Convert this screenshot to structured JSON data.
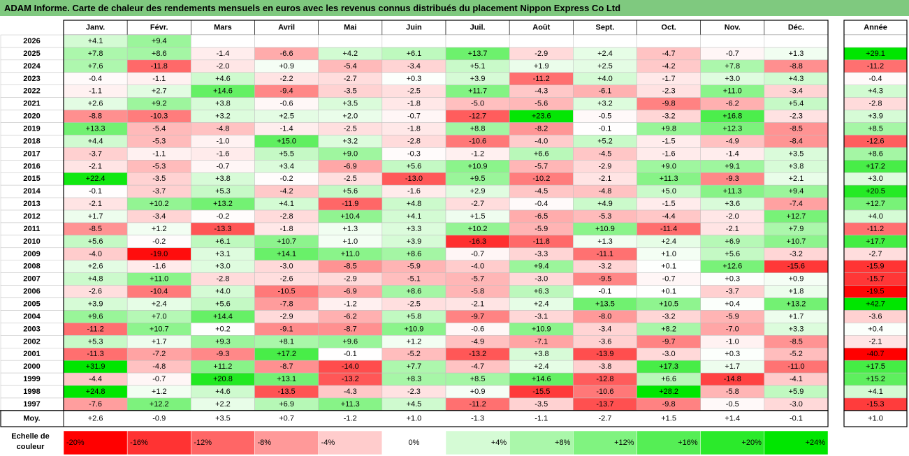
{
  "title": "ADAM Informe. Carte de chaleur des rendements mensuels en euros avec les revenus connus distribués du placement Nippon Express Co Ltd",
  "chart_data": {
    "type": "heatmap",
    "months": [
      "Janv.",
      "Févr.",
      "Mars",
      "Avril",
      "Mai",
      "Juin",
      "Juil.",
      "Août",
      "Sept.",
      "Oct.",
      "Nov.",
      "Déc."
    ],
    "year_label": "Année",
    "avg_label": "Moy.",
    "scale_label": "Echelle de couleur",
    "rows": [
      {
        "year": "2026",
        "values": [
          4.1,
          9.4,
          null,
          null,
          null,
          null,
          null,
          null,
          null,
          null,
          null,
          null
        ],
        "annual": null
      },
      {
        "year": "2025",
        "values": [
          7.8,
          8.6,
          -1.4,
          -6.6,
          4.2,
          6.1,
          13.7,
          -2.9,
          2.4,
          -4.7,
          -0.7,
          1.3
        ],
        "annual": 29.1
      },
      {
        "year": "2024",
        "values": [
          7.6,
          -11.8,
          -2.0,
          0.9,
          -5.4,
          -3.4,
          5.1,
          1.9,
          2.5,
          -4.2,
          7.8,
          -8.8
        ],
        "annual": -11.2
      },
      {
        "year": "2023",
        "values": [
          -0.4,
          -1.1,
          4.6,
          -2.2,
          -2.7,
          0.3,
          3.9,
          -11.2,
          4.0,
          -1.7,
          3.0,
          4.3
        ],
        "annual": -0.4
      },
      {
        "year": "2022",
        "values": [
          -1.1,
          2.7,
          14.6,
          -9.4,
          -3.5,
          -2.5,
          11.7,
          -4.3,
          -6.1,
          -2.3,
          11.0,
          -3.4
        ],
        "annual": 4.3
      },
      {
        "year": "2021",
        "values": [
          2.6,
          9.2,
          3.8,
          -0.6,
          3.5,
          -1.8,
          -5.0,
          -5.6,
          3.2,
          -9.8,
          -6.2,
          5.4
        ],
        "annual": -2.8
      },
      {
        "year": "2020",
        "values": [
          -8.8,
          -10.3,
          3.2,
          2.5,
          2.0,
          -0.7,
          -12.7,
          23.6,
          -0.5,
          -3.2,
          16.8,
          -2.3
        ],
        "annual": 3.9
      },
      {
        "year": "2019",
        "values": [
          13.3,
          -5.4,
          -4.8,
          -1.4,
          -2.5,
          -1.8,
          8.8,
          -8.2,
          -0.1,
          9.8,
          12.3,
          -8.5
        ],
        "annual": 8.5
      },
      {
        "year": "2018",
        "values": [
          4.4,
          -5.3,
          -1.0,
          15.0,
          3.2,
          -2.8,
          -10.6,
          -4.0,
          5.2,
          -1.5,
          -4.9,
          -8.4
        ],
        "annual": -12.6
      },
      {
        "year": "2017",
        "values": [
          -3.7,
          -1.1,
          -1.6,
          5.5,
          9.0,
          -0.3,
          -1.2,
          6.6,
          -4.5,
          -1.6,
          -1.4,
          3.5
        ],
        "annual": 8.6
      },
      {
        "year": "2016",
        "values": [
          -2.1,
          -5.3,
          -0.7,
          3.4,
          -6.9,
          5.6,
          10.9,
          -5.7,
          -2.9,
          9.0,
          9.1,
          3.8
        ],
        "annual": 17.2
      },
      {
        "year": "2015",
        "values": [
          22.4,
          -3.5,
          3.8,
          -0.2,
          -2.5,
          -13.0,
          9.5,
          -10.2,
          -2.1,
          11.3,
          -9.3,
          2.1
        ],
        "annual": 3.0
      },
      {
        "year": "2014",
        "values": [
          -0.1,
          -3.7,
          5.3,
          -4.2,
          5.6,
          -1.6,
          2.9,
          -4.5,
          -4.8,
          5.0,
          11.3,
          9.4
        ],
        "annual": 20.5
      },
      {
        "year": "2013",
        "values": [
          -2.1,
          10.2,
          13.2,
          4.1,
          -11.9,
          4.8,
          -2.7,
          -0.4,
          4.9,
          -1.5,
          3.6,
          -7.4
        ],
        "annual": 12.7
      },
      {
        "year": "2012",
        "values": [
          1.7,
          -3.4,
          -0.2,
          -2.8,
          10.4,
          4.1,
          1.5,
          -6.5,
          -5.3,
          -4.4,
          -2.0,
          12.7
        ],
        "annual": 4.0
      },
      {
        "year": "2011",
        "values": [
          -8.5,
          1.2,
          -13.3,
          -1.8,
          1.3,
          3.3,
          10.2,
          -5.9,
          10.9,
          -11.4,
          -2.1,
          7.9
        ],
        "annual": -11.2
      },
      {
        "year": "2010",
        "values": [
          5.6,
          -0.2,
          6.1,
          10.7,
          1.0,
          3.9,
          -16.3,
          -11.8,
          1.3,
          2.4,
          6.9,
          10.7
        ],
        "annual": 17.7
      },
      {
        "year": "2009",
        "values": [
          -4.0,
          -19.0,
          3.1,
          14.1,
          11.0,
          8.6,
          -0.7,
          -3.3,
          -11.1,
          1.0,
          5.6,
          -3.2
        ],
        "annual": -2.7
      },
      {
        "year": "2008",
        "values": [
          2.6,
          -1.6,
          3.0,
          -3.0,
          -8.5,
          -5.9,
          -4.0,
          9.4,
          -3.2,
          0.1,
          12.6,
          -15.6
        ],
        "annual": -15.9
      },
      {
        "year": "2007",
        "values": [
          4.8,
          11.0,
          -2.8,
          -2.6,
          -2.9,
          -5.1,
          -5.7,
          -3.0,
          -9.5,
          -0.7,
          0.3,
          0.9
        ],
        "annual": -15.7
      },
      {
        "year": "2006",
        "values": [
          -2.6,
          -10.4,
          4.0,
          -10.5,
          -6.9,
          8.6,
          -5.8,
          6.3,
          -0.1,
          0.1,
          -3.7,
          1.8
        ],
        "annual": -19.5
      },
      {
        "year": "2005",
        "values": [
          3.9,
          2.4,
          5.6,
          -7.8,
          -1.2,
          -2.5,
          -2.1,
          2.4,
          13.5,
          10.5,
          0.4,
          13.2
        ],
        "annual": 42.7
      },
      {
        "year": "2004",
        "values": [
          9.6,
          7.0,
          14.4,
          -2.9,
          -6.2,
          5.8,
          -9.7,
          -3.1,
          -8.0,
          -3.2,
          -5.9,
          1.7
        ],
        "annual": -3.6
      },
      {
        "year": "2003",
        "values": [
          -11.2,
          10.7,
          0.2,
          -9.1,
          -8.7,
          10.9,
          -0.6,
          10.9,
          -3.4,
          8.2,
          -7.0,
          3.3
        ],
        "annual": 0.4
      },
      {
        "year": "2002",
        "values": [
          5.3,
          1.7,
          9.3,
          8.1,
          9.6,
          1.2,
          -4.9,
          -7.1,
          -3.6,
          -9.7,
          -1.0,
          -8.5
        ],
        "annual": -2.1
      },
      {
        "year": "2001",
        "values": [
          -11.3,
          -7.2,
          -9.3,
          17.2,
          -0.1,
          -5.2,
          -13.2,
          3.8,
          -13.9,
          -3.0,
          0.3,
          -5.2
        ],
        "annual": -40.7
      },
      {
        "year": "2000",
        "values": [
          31.9,
          -4.8,
          11.2,
          -8.7,
          -14.0,
          7.7,
          -4.7,
          2.4,
          -3.8,
          17.3,
          1.7,
          -11.0
        ],
        "annual": 17.5
      },
      {
        "year": "1999",
        "values": [
          -4.4,
          -0.7,
          20.8,
          13.1,
          -13.2,
          8.3,
          8.5,
          14.6,
          -12.8,
          6.6,
          -14.8,
          -4.1
        ],
        "annual": 15.2
      },
      {
        "year": "1998",
        "values": [
          24.8,
          1.2,
          4.6,
          -13.5,
          -4.3,
          -2.3,
          0.9,
          -15.5,
          -10.6,
          28.2,
          -5.8,
          5.9
        ],
        "annual": 4.1
      },
      {
        "year": "1997",
        "values": [
          -7.6,
          12.2,
          2.2,
          6.9,
          11.3,
          4.5,
          -11.2,
          -3.5,
          -13.7,
          -9.8,
          -0.5,
          -3.0
        ],
        "annual": -15.3
      }
    ],
    "averages": [
      2.6,
      -0.9,
      3.5,
      0.7,
      -1.2,
      1.0,
      -1.3,
      -1.1,
      -2.7,
      1.5,
      1.4,
      -0.1
    ],
    "annual_average": 1.0,
    "scale": [
      {
        "label": "-20%",
        "value": -20
      },
      {
        "label": "-16%",
        "value": -16
      },
      {
        "label": "-12%",
        "value": -12
      },
      {
        "label": "-8%",
        "value": -8
      },
      {
        "label": "-4%",
        "value": -4
      },
      {
        "label": "0%",
        "value": 0
      },
      {
        "label": "+4%",
        "value": 4
      },
      {
        "label": "+8%",
        "value": 8
      },
      {
        "label": "+12%",
        "value": 12
      },
      {
        "label": "+16%",
        "value": 16
      },
      {
        "label": "+20%",
        "value": 20
      },
      {
        "label": "+24%",
        "value": 24
      }
    ]
  }
}
